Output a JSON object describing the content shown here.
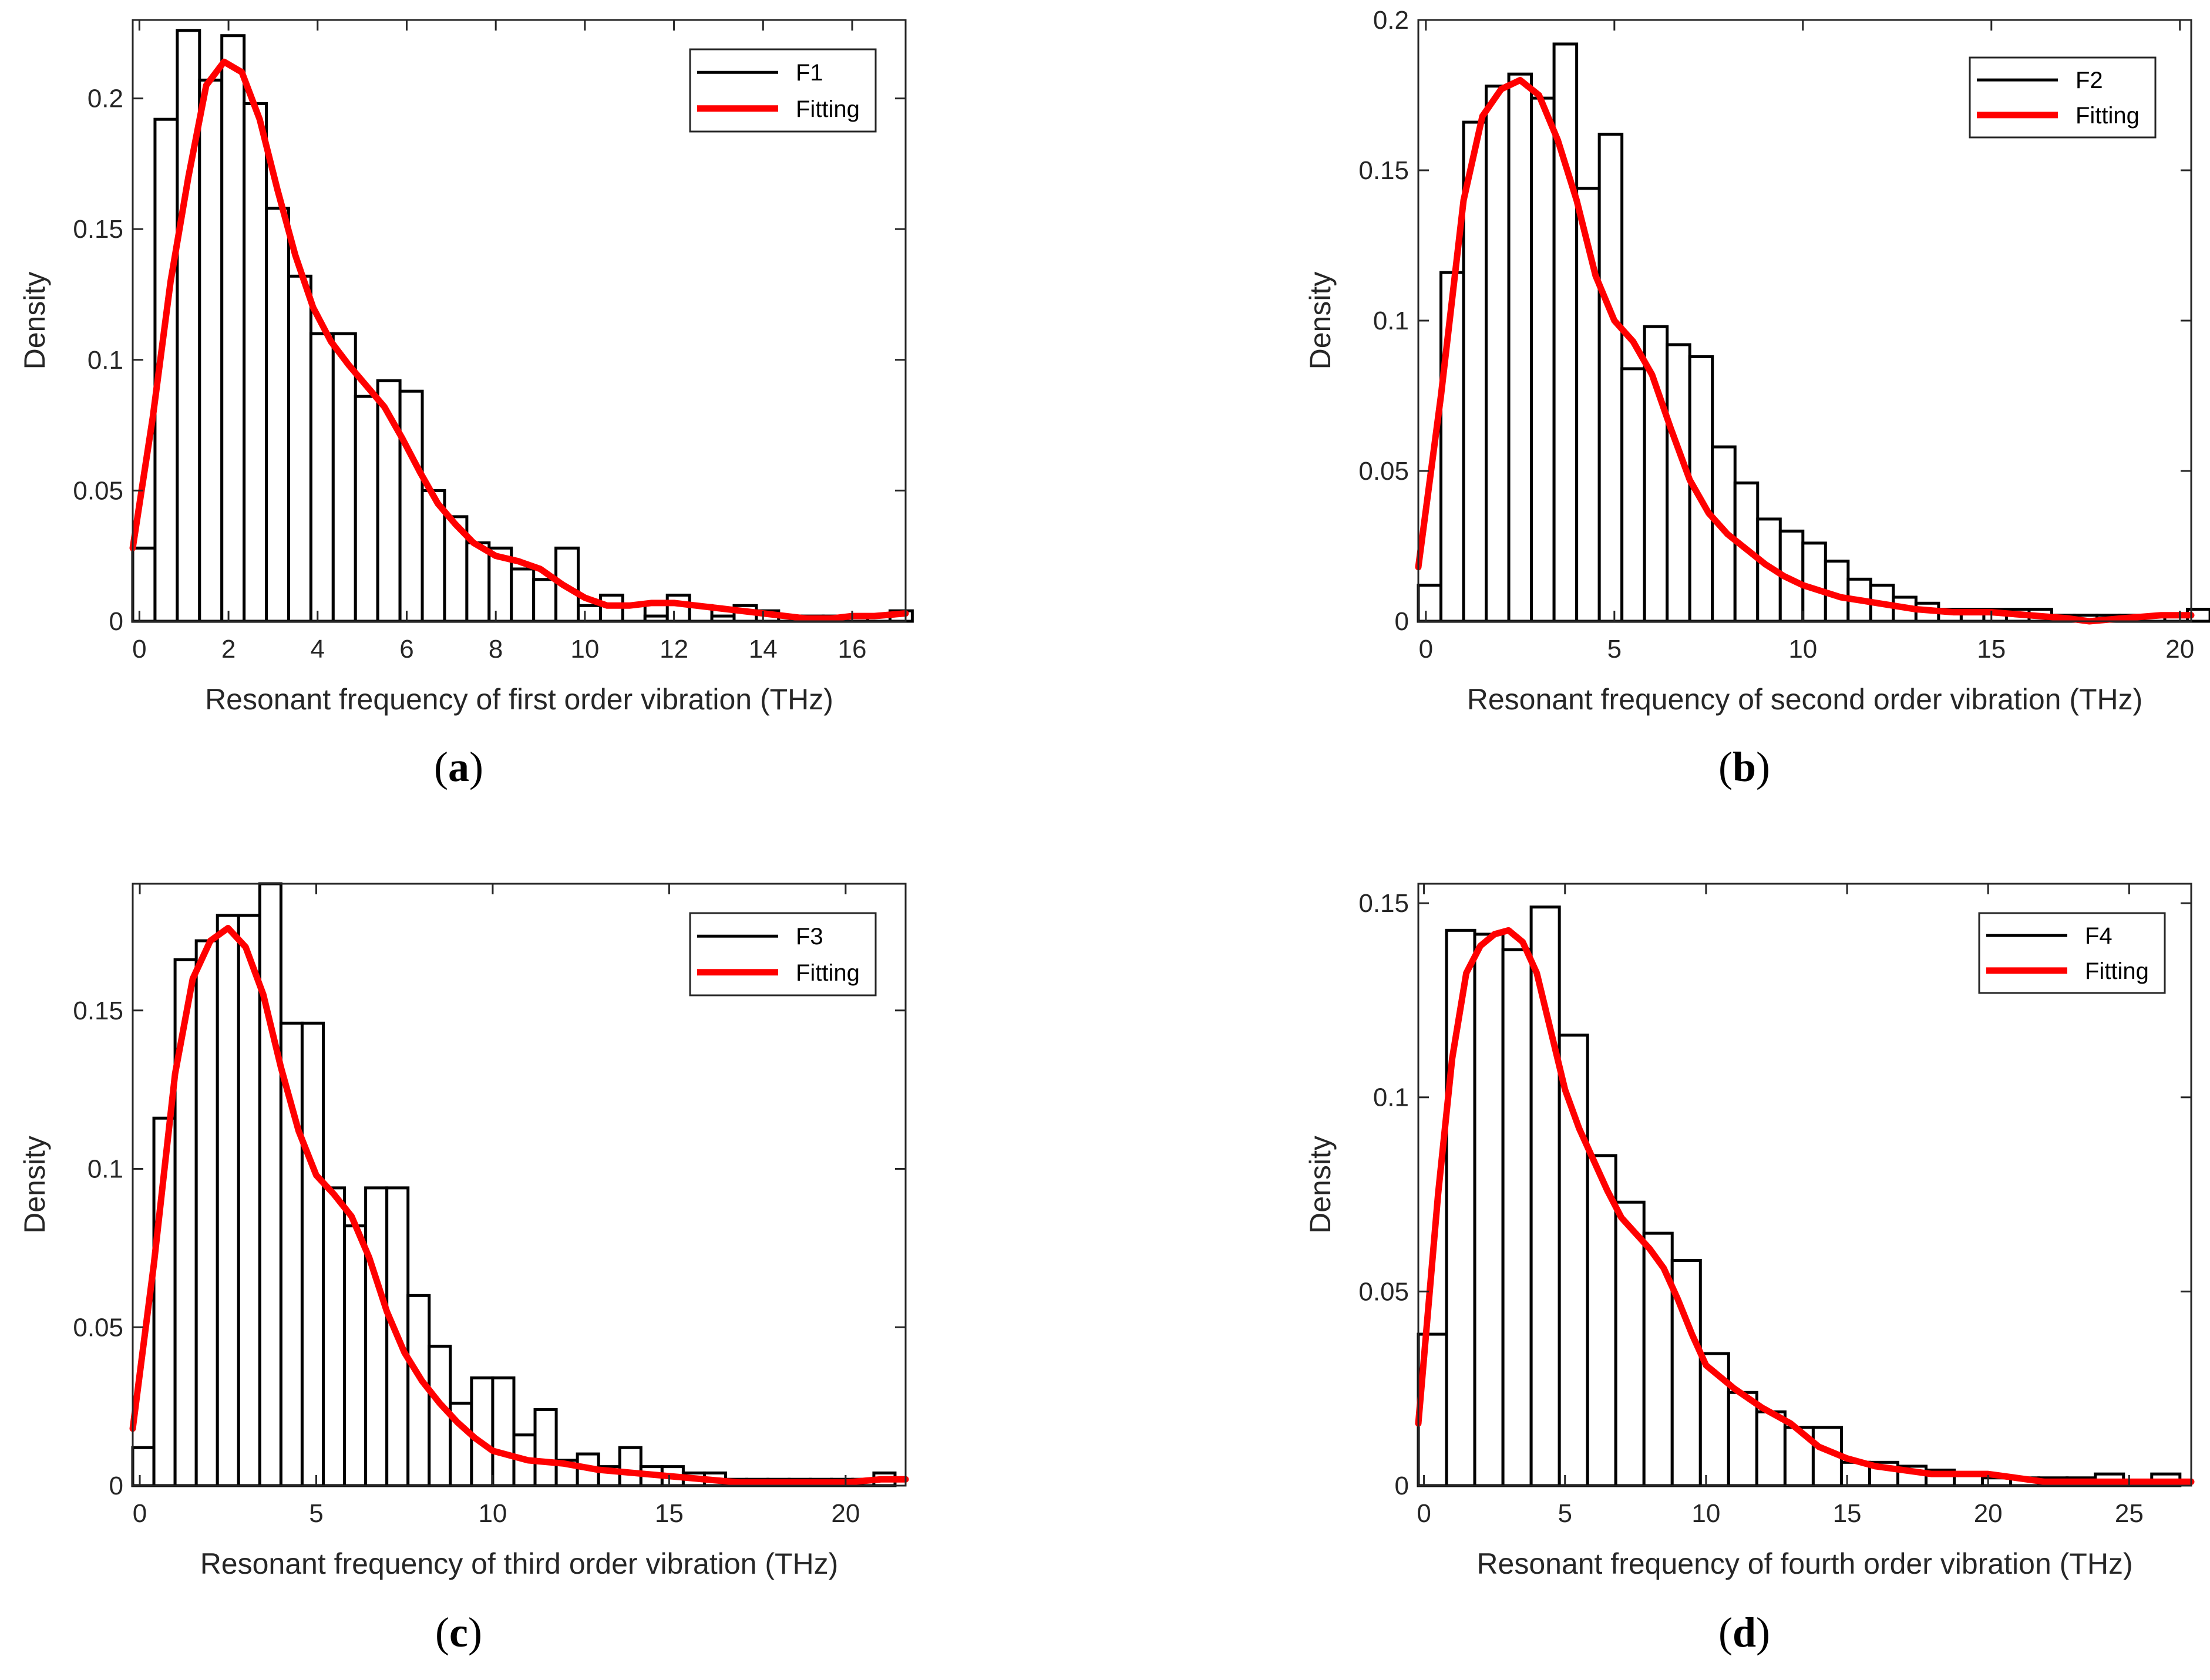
{
  "colors": {
    "fit": "#ff0000",
    "bar_edge": "#000000",
    "bar_fill": "#ffffff",
    "axis": "#262626"
  },
  "chart_data": [
    {
      "type": "bar",
      "subtype": "histogram-with-fit",
      "caption_letter": "a",
      "xlabel": "Resonant frequency of first order vibration (THz)",
      "ylabel": "Density",
      "xlim": [
        -0.15,
        17.2
      ],
      "ylim": [
        0,
        0.23
      ],
      "xticks": [
        0,
        2,
        4,
        6,
        8,
        10,
        12,
        14,
        16
      ],
      "yticks": [
        0,
        0.05,
        0.1,
        0.15,
        0.2
      ],
      "ytick_labels": [
        "0",
        "0.05",
        "0.1",
        "0.15",
        "0.2"
      ],
      "bin_start": -0.15,
      "bin_width": 0.5,
      "values": [
        0.028,
        0.192,
        0.226,
        0.207,
        0.224,
        0.198,
        0.158,
        0.132,
        0.11,
        0.11,
        0.086,
        0.092,
        0.088,
        0.05,
        0.04,
        0.03,
        0.028,
        0.02,
        0.016,
        0.028,
        0.006,
        0.01,
        0.006,
        0.002,
        0.01,
        0.006,
        0.002,
        0.006,
        0.004,
        0.002,
        0.002,
        0.002,
        0.002,
        0.002,
        0.004
      ],
      "legend": [
        "F1",
        "Fitting"
      ],
      "fit": {
        "x": [
          -0.15,
          0.3,
          0.7,
          1.1,
          1.5,
          1.9,
          2.3,
          2.7,
          3.1,
          3.5,
          3.9,
          4.3,
          4.7,
          5.1,
          5.5,
          5.9,
          6.3,
          6.7,
          7.1,
          7.5,
          8.0,
          8.5,
          9.0,
          9.5,
          10.0,
          10.5,
          11.0,
          11.5,
          12.0,
          12.5,
          13.0,
          13.5,
          14.0,
          14.5,
          15.0,
          15.5,
          16.0,
          16.5,
          17.2
        ],
        "y": [
          0.028,
          0.078,
          0.13,
          0.17,
          0.205,
          0.214,
          0.21,
          0.192,
          0.165,
          0.14,
          0.12,
          0.107,
          0.098,
          0.09,
          0.082,
          0.07,
          0.057,
          0.045,
          0.037,
          0.03,
          0.025,
          0.023,
          0.02,
          0.014,
          0.009,
          0.006,
          0.006,
          0.007,
          0.007,
          0.006,
          0.005,
          0.004,
          0.003,
          0.002,
          0.001,
          0.001,
          0.002,
          0.002,
          0.003
        ]
      }
    },
    {
      "type": "bar",
      "subtype": "histogram-with-fit",
      "caption_letter": "b",
      "xlabel": "Resonant frequency of second order vibration (THz)",
      "ylabel": "Density",
      "xlim": [
        -0.2,
        20.3
      ],
      "ylim": [
        0,
        0.2
      ],
      "xticks": [
        0,
        5,
        10,
        15,
        20
      ],
      "yticks": [
        0,
        0.05,
        0.1,
        0.15,
        0.2
      ],
      "ytick_labels": [
        "0",
        "0.05",
        "0.1",
        "0.15",
        "0.2"
      ],
      "bin_start": -0.2,
      "bin_width": 0.6,
      "values": [
        0.012,
        0.116,
        0.166,
        0.178,
        0.182,
        0.174,
        0.192,
        0.144,
        0.162,
        0.084,
        0.098,
        0.092,
        0.088,
        0.058,
        0.046,
        0.034,
        0.03,
        0.026,
        0.02,
        0.014,
        0.012,
        0.008,
        0.006,
        0.004,
        0.004,
        0.004,
        0.004,
        0.004,
        0.002,
        0.002,
        0.002,
        0.002,
        0.002,
        0.002,
        0.004
      ],
      "legend": [
        "F2",
        "Fitting"
      ],
      "fit": {
        "x": [
          -0.2,
          0.4,
          1.0,
          1.5,
          2.0,
          2.5,
          3.0,
          3.5,
          4.0,
          4.5,
          5.0,
          5.5,
          6.0,
          6.5,
          7.0,
          7.5,
          8.0,
          8.5,
          9.0,
          9.5,
          10.0,
          11.0,
          12.0,
          13.0,
          14.0,
          15.0,
          16.0,
          17.0,
          17.6,
          18.5,
          19.5,
          20.3
        ],
        "y": [
          0.018,
          0.075,
          0.14,
          0.168,
          0.177,
          0.18,
          0.175,
          0.16,
          0.14,
          0.115,
          0.1,
          0.093,
          0.082,
          0.064,
          0.047,
          0.036,
          0.029,
          0.024,
          0.019,
          0.015,
          0.012,
          0.008,
          0.006,
          0.004,
          0.003,
          0.003,
          0.002,
          0.001,
          0.0,
          0.001,
          0.002,
          0.002
        ]
      }
    },
    {
      "type": "bar",
      "subtype": "histogram-with-fit",
      "caption_letter": "c",
      "xlabel": "Resonant frequency of third order vibration (THz)",
      "ylabel": "Density",
      "xlim": [
        -0.2,
        21.7
      ],
      "ylim": [
        0,
        0.19
      ],
      "xticks": [
        0,
        5,
        10,
        15,
        20
      ],
      "yticks": [
        0,
        0.05,
        0.1,
        0.15
      ],
      "ytick_labels": [
        "0",
        "0.05",
        "0.1",
        "0.15"
      ],
      "bin_start": -0.2,
      "bin_width": 0.6,
      "values": [
        0.012,
        0.116,
        0.166,
        0.172,
        0.18,
        0.18,
        0.19,
        0.146,
        0.146,
        0.094,
        0.082,
        0.094,
        0.094,
        0.06,
        0.044,
        0.026,
        0.034,
        0.034,
        0.016,
        0.024,
        0.008,
        0.01,
        0.006,
        0.012,
        0.006,
        0.006,
        0.004,
        0.004,
        0.002,
        0.002,
        0.002,
        0.002,
        0.002,
        0.002,
        0.002,
        0.004
      ],
      "legend": [
        "F3",
        "Fitting"
      ],
      "fit": {
        "x": [
          -0.2,
          0.4,
          1.0,
          1.5,
          2.0,
          2.5,
          3.0,
          3.5,
          4.0,
          4.5,
          5.0,
          5.5,
          6.0,
          6.5,
          7.0,
          7.5,
          8.0,
          8.5,
          9.0,
          9.5,
          10.0,
          11.0,
          12.0,
          13.0,
          14.0,
          15.0,
          16.0,
          17.0,
          18.0,
          19.0,
          20.0,
          21.0,
          21.7
        ],
        "y": [
          0.018,
          0.07,
          0.13,
          0.16,
          0.172,
          0.176,
          0.17,
          0.155,
          0.132,
          0.112,
          0.098,
          0.092,
          0.085,
          0.072,
          0.055,
          0.042,
          0.033,
          0.026,
          0.02,
          0.015,
          0.011,
          0.008,
          0.007,
          0.005,
          0.004,
          0.003,
          0.002,
          0.001,
          0.001,
          0.001,
          0.001,
          0.002,
          0.002
        ]
      }
    },
    {
      "type": "bar",
      "subtype": "histogram-with-fit",
      "caption_letter": "d",
      "xlabel": "Resonant frequency of fourth order vibration (THz)",
      "ylabel": "Density",
      "xlim": [
        -0.2,
        27.2
      ],
      "ylim": [
        0,
        0.155
      ],
      "xticks": [
        0,
        5,
        10,
        15,
        20,
        25
      ],
      "yticks": [
        0,
        0.05,
        0.1,
        0.15
      ],
      "ytick_labels": [
        "0",
        "0.05",
        "0.1",
        "0.15"
      ],
      "bin_start": -0.2,
      "bin_width": 1.0,
      "values": [
        0.039,
        0.143,
        0.142,
        0.138,
        0.149,
        0.116,
        0.085,
        0.073,
        0.065,
        0.058,
        0.034,
        0.024,
        0.019,
        0.015,
        0.015,
        0.006,
        0.006,
        0.005,
        0.004,
        0.003,
        0.002,
        0.002,
        0.002,
        0.002,
        0.003,
        0.001,
        0.003
      ],
      "legend": [
        "F4",
        "Fitting"
      ],
      "fit": {
        "x": [
          -0.2,
          0.5,
          1.0,
          1.5,
          2.0,
          2.5,
          3.0,
          3.5,
          4.0,
          4.5,
          5.0,
          5.5,
          6.0,
          6.5,
          7.0,
          7.5,
          8.0,
          8.5,
          9.0,
          9.5,
          10.0,
          11.0,
          12.0,
          13.0,
          14.0,
          15.0,
          16.0,
          17.0,
          18.0,
          19.0,
          20.0,
          21.0,
          22.0,
          23.0,
          24.0,
          25.0,
          26.0,
          27.2
        ],
        "y": [
          0.016,
          0.075,
          0.11,
          0.132,
          0.139,
          0.142,
          0.143,
          0.14,
          0.132,
          0.117,
          0.102,
          0.092,
          0.084,
          0.076,
          0.069,
          0.065,
          0.061,
          0.056,
          0.048,
          0.039,
          0.031,
          0.025,
          0.02,
          0.016,
          0.01,
          0.007,
          0.005,
          0.004,
          0.003,
          0.003,
          0.003,
          0.002,
          0.001,
          0.001,
          0.001,
          0.001,
          0.001,
          0.001
        ]
      }
    }
  ]
}
